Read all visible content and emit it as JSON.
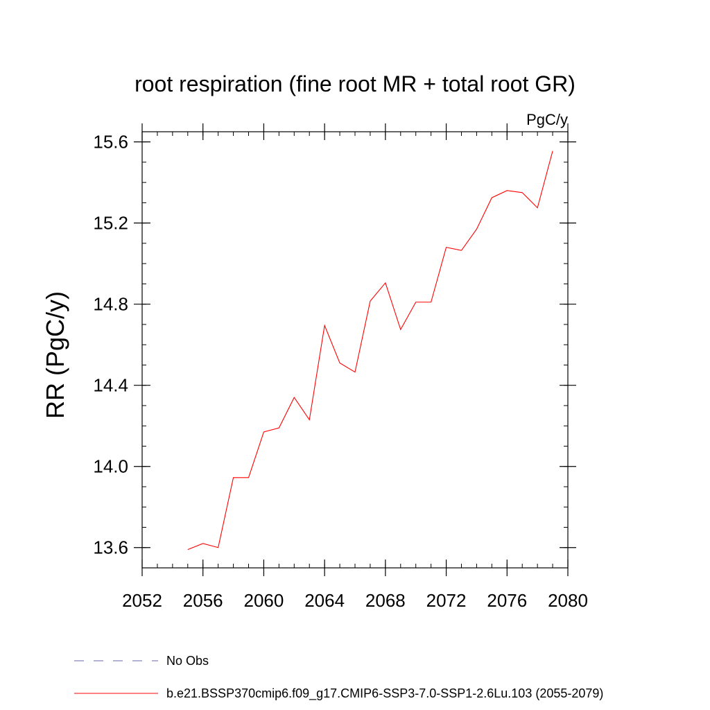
{
  "chart_data": {
    "type": "line",
    "title": "root respiration (fine root MR + total root GR)",
    "units_label": "PgC/y",
    "xlabel": "",
    "ylabel": "RR  (PgC/y)",
    "xlim": [
      2052,
      2080
    ],
    "ylim": [
      13.5,
      15.65
    ],
    "x_ticks": [
      2052,
      2056,
      2060,
      2064,
      2068,
      2072,
      2076,
      2080
    ],
    "x_tick_labels": [
      "2052",
      "2056",
      "2060",
      "2064",
      "2068",
      "2072",
      "2076",
      "2080"
    ],
    "x_minor_step": 1,
    "y_ticks": [
      13.6,
      14.0,
      14.4,
      14.8,
      15.2,
      15.6
    ],
    "y_tick_labels": [
      "13.6",
      "14.0",
      "14.4",
      "14.8",
      "15.2",
      "15.6"
    ],
    "y_minor_step": 0.1,
    "series": [
      {
        "name": "No Obs",
        "color": "#6666aa",
        "dashed": true,
        "x": [],
        "values": []
      },
      {
        "name": "b.e21.BSSP370cmip6.f09_g17.CMIP6-SSP3-7.0-SSP1-2.6Lu.103 (2055-2079)",
        "color": "#ff0000",
        "dashed": false,
        "x": [
          2055,
          2056,
          2057,
          2058,
          2059,
          2060,
          2061,
          2062,
          2063,
          2064,
          2065,
          2066,
          2067,
          2068,
          2069,
          2070,
          2071,
          2072,
          2073,
          2074,
          2075,
          2076,
          2077,
          2078,
          2079
        ],
        "values": [
          13.59,
          13.62,
          13.6,
          13.945,
          13.945,
          14.17,
          14.19,
          14.34,
          14.23,
          14.695,
          14.51,
          14.465,
          14.815,
          14.905,
          14.675,
          14.81,
          14.81,
          15.08,
          15.065,
          15.17,
          15.325,
          15.36,
          15.35,
          15.275,
          15.555
        ]
      }
    ],
    "legend": [
      {
        "label": "No Obs",
        "color": "#6666aa",
        "dashed": true
      },
      {
        "label": "b.e21.BSSP370cmip6.f09_g17.CMIP6-SSP3-7.0-SSP1-2.6Lu.103 (2055-2079)",
        "color": "#ff0000",
        "dashed": false
      }
    ]
  }
}
